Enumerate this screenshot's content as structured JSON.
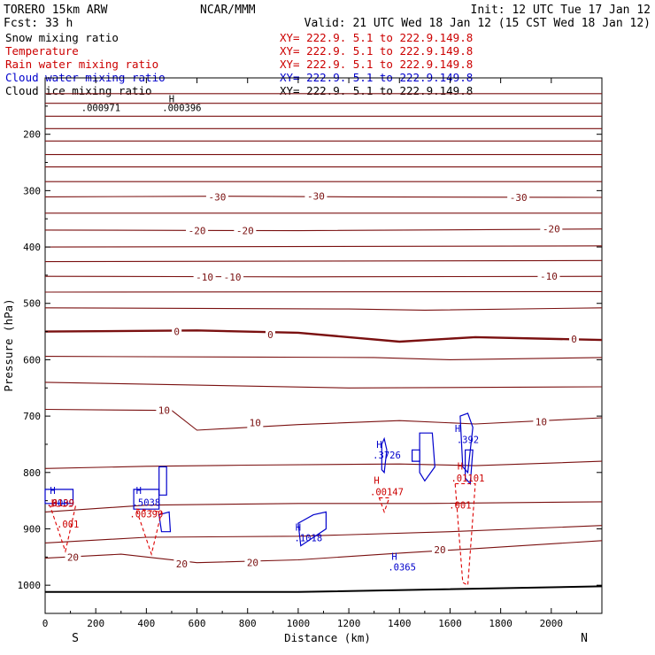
{
  "header": {
    "model": "TORERO  15km ARW",
    "center": "NCAR/MMM",
    "init": "Init: 12 UTC Tue 17 Jan 12",
    "fcst": "Fcst:    33 h",
    "valid": "Valid: 21 UTC Wed 18 Jan 12 (15 CST Wed 18 Jan 12)"
  },
  "legend": [
    {
      "label": "Snow mixing ratio",
      "xy": "XY= 222.9.  5.1 to 222.9.149.8",
      "color": "#000000"
    },
    {
      "label": "Temperature",
      "xy": "XY= 222.9.  5.1 to 222.9.149.8",
      "color": "#cc0000"
    },
    {
      "label": "Rain water mixing ratio",
      "xy": "XY= 222.9.  5.1 to 222.9.149.8",
      "color": "#cc0000"
    },
    {
      "label": "Cloud water mixing ratio",
      "xy": "XY= 222.9.  5.1 to 222.9.149.8",
      "color": "#0000cc"
    },
    {
      "label": "Cloud ice mixing ratio",
      "xy": "XY= 222.9.  5.1 to 222.9.149.8",
      "color": "#000000"
    }
  ],
  "chart_data": {
    "type": "cross-section",
    "xlabel": "Distance (km)",
    "ylabel": "Pressure (hPa)",
    "xlim": [
      0,
      2200
    ],
    "ylim": [
      1050,
      100
    ],
    "xticks": [
      0,
      200,
      400,
      600,
      800,
      1000,
      1200,
      1400,
      1600,
      1800,
      2000
    ],
    "yticks": [
      200,
      300,
      400,
      500,
      600,
      700,
      800,
      900,
      1000
    ],
    "end_labels": {
      "left": "S",
      "right": "N"
    },
    "temperature_isotherms": [
      {
        "temp": -60,
        "p": [
          [
            0,
            128
          ],
          [
            2200,
            128
          ]
        ]
      },
      {
        "temp": -56,
        "p": [
          [
            0,
            145
          ],
          [
            2200,
            145
          ]
        ]
      },
      {
        "temp": -52,
        "p": [
          [
            0,
            168
          ],
          [
            2200,
            168
          ]
        ]
      },
      {
        "temp": -48,
        "p": [
          [
            0,
            190
          ],
          [
            2200,
            190
          ]
        ]
      },
      {
        "temp": -44,
        "p": [
          [
            0,
            212
          ],
          [
            2200,
            212
          ]
        ]
      },
      {
        "temp": -40,
        "p": [
          [
            0,
            236
          ],
          [
            2200,
            236
          ]
        ]
      },
      {
        "temp": -36,
        "p": [
          [
            0,
            258
          ],
          [
            1000,
            258
          ],
          [
            2200,
            258
          ]
        ]
      },
      {
        "temp": -32,
        "p": [
          [
            0,
            284
          ],
          [
            2200,
            284
          ]
        ]
      },
      {
        "temp": -30,
        "p": [
          [
            0,
            311
          ],
          [
            700,
            310
          ],
          [
            1200,
            311
          ],
          [
            2200,
            312
          ]
        ]
      },
      {
        "temp": -26,
        "p": [
          [
            0,
            340
          ],
          [
            2200,
            340
          ]
        ]
      },
      {
        "temp": -20,
        "p": [
          [
            0,
            370
          ],
          [
            1000,
            371
          ],
          [
            2200,
            368
          ]
        ]
      },
      {
        "temp": -16,
        "p": [
          [
            0,
            400
          ],
          [
            2200,
            398
          ]
        ]
      },
      {
        "temp": -12,
        "p": [
          [
            0,
            426
          ],
          [
            2200,
            424
          ]
        ]
      },
      {
        "temp": -10,
        "p": [
          [
            0,
            452
          ],
          [
            1000,
            453
          ],
          [
            2200,
            452
          ]
        ]
      },
      {
        "temp": -6,
        "p": [
          [
            0,
            480
          ],
          [
            2200,
            479
          ]
        ]
      },
      {
        "temp": -2,
        "p": [
          [
            0,
            508
          ],
          [
            1200,
            510
          ],
          [
            1500,
            512
          ],
          [
            2200,
            508
          ]
        ]
      },
      {
        "temp": 0,
        "p": [
          [
            0,
            550
          ],
          [
            600,
            548
          ],
          [
            1000,
            552
          ],
          [
            1400,
            568
          ],
          [
            1700,
            560
          ],
          [
            2200,
            565
          ]
        ]
      },
      {
        "temp": 4,
        "p": [
          [
            0,
            594
          ],
          [
            1300,
            596
          ],
          [
            1600,
            600
          ],
          [
            2200,
            596
          ]
        ]
      },
      {
        "temp": 8,
        "p": [
          [
            0,
            640
          ],
          [
            600,
            645
          ],
          [
            1200,
            650
          ],
          [
            2200,
            648
          ]
        ]
      },
      {
        "temp": 10,
        "p": [
          [
            0,
            688
          ],
          [
            500,
            690
          ],
          [
            600,
            725
          ],
          [
            1000,
            715
          ],
          [
            1400,
            708
          ],
          [
            1700,
            714
          ],
          [
            2200,
            703
          ]
        ]
      },
      {
        "temp": 14,
        "p": [
          [
            0,
            793
          ],
          [
            400,
            789
          ],
          [
            800,
            787
          ],
          [
            1400,
            785
          ],
          [
            1700,
            788
          ],
          [
            2200,
            780
          ]
        ]
      },
      {
        "temp": 16,
        "p": [
          [
            0,
            870
          ],
          [
            400,
            858
          ],
          [
            1000,
            855
          ],
          [
            1500,
            855
          ],
          [
            2200,
            852
          ]
        ]
      },
      {
        "temp": 18,
        "p": [
          [
            0,
            925
          ],
          [
            400,
            915
          ],
          [
            1000,
            913
          ],
          [
            1600,
            905
          ],
          [
            2200,
            894
          ]
        ]
      },
      {
        "temp": 20,
        "p": [
          [
            0,
            952
          ],
          [
            300,
            945
          ],
          [
            600,
            960
          ],
          [
            1000,
            955
          ],
          [
            1400,
            943
          ],
          [
            1700,
            935
          ],
          [
            2200,
            921
          ]
        ]
      },
      {
        "temp": 22,
        "p": [
          [
            0,
            1012
          ],
          [
            1000,
            1012
          ],
          [
            2200,
            1002
          ]
        ]
      }
    ],
    "temperature_labels": [
      {
        "text": "-30",
        "x": 680,
        "p": 311
      },
      {
        "text": "-30",
        "x": 1070,
        "p": 310
      },
      {
        "text": "-30",
        "x": 1870,
        "p": 312
      },
      {
        "text": "-20",
        "x": 600,
        "p": 371
      },
      {
        "text": "-20",
        "x": 790,
        "p": 371
      },
      {
        "text": "-20",
        "x": 2000,
        "p": 368
      },
      {
        "text": "-10",
        "x": 630,
        "p": 453
      },
      {
        "text": "-10",
        "x": 740,
        "p": 453
      },
      {
        "text": "-10",
        "x": 1990,
        "p": 452
      },
      {
        "text": "0",
        "x": 520,
        "p": 550
      },
      {
        "text": "0",
        "x": 890,
        "p": 555
      },
      {
        "text": "0",
        "x": 2090,
        "p": 563
      },
      {
        "text": "10",
        "x": 470,
        "p": 690
      },
      {
        "text": "10",
        "x": 830,
        "p": 712
      },
      {
        "text": "10",
        "x": 1960,
        "p": 710
      },
      {
        "text": "20",
        "x": 110,
        "p": 950
      },
      {
        "text": "20",
        "x": 540,
        "p": 962
      },
      {
        "text": "20",
        "x": 820,
        "p": 960
      },
      {
        "text": "20",
        "x": 1560,
        "p": 937
      }
    ],
    "annotations": [
      {
        "text": ".000971",
        "x": 220,
        "p": 159,
        "color": "#000000"
      },
      {
        "text": ".000396",
        "x": 540,
        "p": 159,
        "color": "#000000"
      },
      {
        "text": "H",
        "x": 500,
        "p": 143,
        "color": "#000000"
      },
      {
        "text": "H",
        "x": 30,
        "p": 838,
        "color": "#0000cc"
      },
      {
        "text": ".0009",
        "x": 60,
        "p": 860,
        "color": "#0000cc"
      },
      {
        "text": ".5038",
        "x": 400,
        "p": 859,
        "color": "#0000cc"
      },
      {
        "text": "H",
        "x": 370,
        "p": 838,
        "color": "#0000cc"
      },
      {
        "text": "H",
        "x": 1000,
        "p": 903,
        "color": "#0000cc"
      },
      {
        "text": ".1018",
        "x": 1040,
        "p": 922,
        "color": "#0000cc"
      },
      {
        "text": "H",
        "x": 1320,
        "p": 756,
        "color": "#0000cc"
      },
      {
        "text": ".3726",
        "x": 1350,
        "p": 775,
        "color": "#0000cc"
      },
      {
        "text": "H",
        "x": 1380,
        "p": 955,
        "color": "#0000cc"
      },
      {
        "text": ".0365",
        "x": 1410,
        "p": 974,
        "color": "#0000cc"
      },
      {
        "text": "H",
        "x": 1630,
        "p": 728,
        "color": "#0000cc"
      },
      {
        "text": ".392",
        "x": 1670,
        "p": 748,
        "color": "#0000cc"
      },
      {
        "text": ".0139",
        "x": 60,
        "p": 860,
        "color": "#cc0000"
      },
      {
        "text": "H",
        "x": 35,
        "p": 860,
        "color": "#cc0000"
      },
      {
        "text": ".001",
        "x": 90,
        "p": 898,
        "color": "#cc0000"
      },
      {
        "text": ".00390",
        "x": 400,
        "p": 880,
        "color": "#cc0000"
      },
      {
        "text": "H",
        "x": 1310,
        "p": 820,
        "color": "#cc0000"
      },
      {
        "text": ".00147",
        "x": 1350,
        "p": 840,
        "color": "#cc0000"
      },
      {
        "text": "H",
        "x": 1640,
        "p": 795,
        "color": "#cc0000"
      },
      {
        "text": ".01101",
        "x": 1670,
        "p": 816,
        "color": "#cc0000"
      },
      {
        "text": ".001",
        "x": 1640,
        "p": 864,
        "color": "#cc0000"
      }
    ]
  }
}
